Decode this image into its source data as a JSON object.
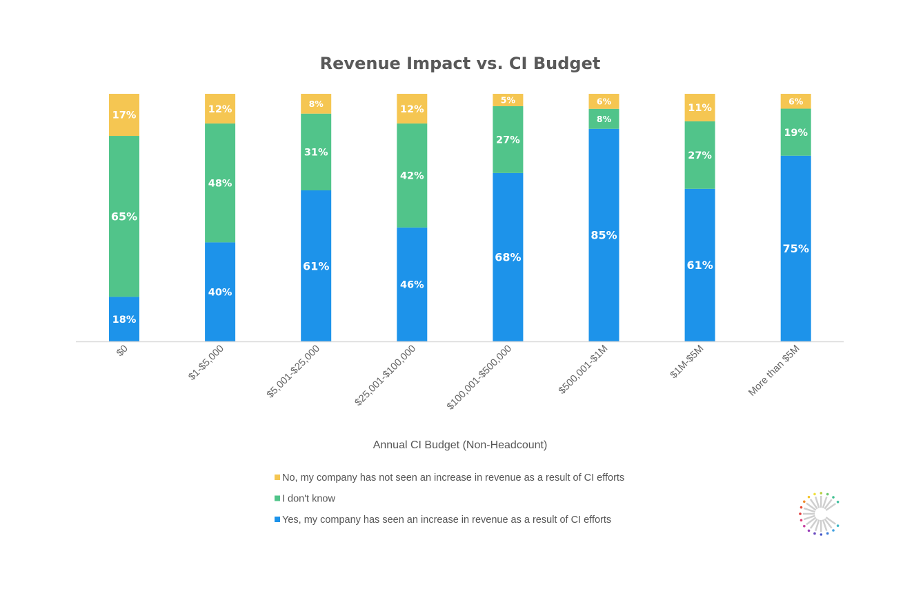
{
  "chart_data": {
    "type": "bar",
    "stacked": true,
    "title": "Revenue Impact vs. CI Budget",
    "xlabel": "Annual CI Budget (Non-Headcount)",
    "ylabel": "",
    "ylim": [
      0,
      100
    ],
    "grid": false,
    "legend_position": "bottom",
    "categories": [
      "$0",
      "$1-$5,000",
      "$5,001-$25,000",
      "$25,001-$100,000",
      "$100,001-$500,000",
      "$500,001-$1M",
      "$1M-$5M",
      "More than $5M"
    ],
    "series": [
      {
        "name": "Yes, my company has seen an increase in revenue as a result of CI efforts",
        "color": "#1d93ea",
        "values": [
          18,
          40,
          61,
          46,
          68,
          85,
          61,
          75
        ]
      },
      {
        "name": "I don't know",
        "color": "#51c48a",
        "values": [
          65,
          48,
          31,
          42,
          27,
          8,
          27,
          19
        ]
      },
      {
        "name": "No, my company has not seen an increase in revenue as a result of CI efforts",
        "color": "#f5c652",
        "values": [
          17,
          12,
          8,
          12,
          5,
          6,
          11,
          6
        ]
      }
    ],
    "legend_order": [
      2,
      1,
      0
    ],
    "value_suffix": "%"
  },
  "logo": {
    "name": "starburst-logo-icon"
  }
}
